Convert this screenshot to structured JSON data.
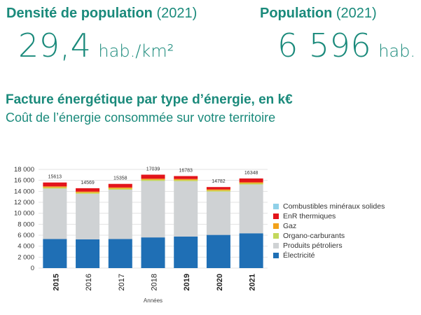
{
  "density": {
    "label": "Densité de population",
    "year": "(2021)",
    "value": "29,4",
    "unit": "hab./km²"
  },
  "population": {
    "label": "Population",
    "year": "(2021)",
    "value": "6 596",
    "unit": "hab."
  },
  "facture": {
    "title": "Facture énergétique par type d’énergie, en k€",
    "subtitle": "Coût de l’énergie consommée sur votre territoire"
  },
  "colors": {
    "accent": "#1a8a7b",
    "electricite": "#1f6fb5",
    "produits_petroliers": "#cfd2d4",
    "organo_carburants": "#c3d85c",
    "gaz": "#f2a21b",
    "enr_thermiques": "#e3141b",
    "combustibles": "#8fd0e8"
  },
  "chart_data": {
    "type": "bar",
    "stacked": true,
    "categories": [
      "2015",
      "2016",
      "2017",
      "2018",
      "2019",
      "2020",
      "2021"
    ],
    "bold_categories": [
      "2015",
      "2019",
      "2020",
      "2021"
    ],
    "totals": [
      15613,
      14569,
      15358,
      17039,
      16783,
      14782,
      16348
    ],
    "total_labels": [
      "15613",
      "14569",
      "15358",
      "17039",
      "16783",
      "14782",
      "16348"
    ],
    "series": [
      {
        "name": "Électricité",
        "color_key": "electricite",
        "values": [
          5300,
          5250,
          5300,
          5600,
          5750,
          6050,
          6350
        ]
      },
      {
        "name": "Produits pétroliers",
        "color_key": "produits_petroliers",
        "values": [
          9200,
          8300,
          9000,
          10300,
          10100,
          7900,
          8900
        ]
      },
      {
        "name": "Organo-carburants",
        "color_key": "organo_carburants",
        "values": [
          200,
          200,
          200,
          200,
          200,
          200,
          200
        ]
      },
      {
        "name": "Gaz",
        "color_key": "gaz",
        "values": [
          200,
          200,
          200,
          200,
          200,
          200,
          200
        ]
      },
      {
        "name": "EnR thermiques",
        "color_key": "enr_thermiques",
        "values": [
          713,
          619,
          658,
          739,
          533,
          432,
          698
        ]
      },
      {
        "name": "Combustibles minéraux solides",
        "color_key": "combustibles",
        "values": [
          0,
          0,
          0,
          0,
          0,
          0,
          0
        ]
      }
    ],
    "legend_order": [
      "Combustibles minéraux solides",
      "EnR thermiques",
      "Gaz",
      "Organo-carburants",
      "Produits pétroliers",
      "Électricité"
    ],
    "y_ticks": [
      0,
      2000,
      4000,
      6000,
      8000,
      10000,
      12000,
      14000,
      16000,
      18000
    ],
    "y_tick_labels": [
      "0",
      "2 000",
      "4 000",
      "6 000",
      "8 000",
      "10 000",
      "12 000",
      "14 000",
      "16 000",
      "18 000"
    ],
    "ylim": [
      0,
      18000
    ],
    "xlabel": "Années",
    "ylabel": "",
    "legend_position": "right",
    "grid": true
  }
}
